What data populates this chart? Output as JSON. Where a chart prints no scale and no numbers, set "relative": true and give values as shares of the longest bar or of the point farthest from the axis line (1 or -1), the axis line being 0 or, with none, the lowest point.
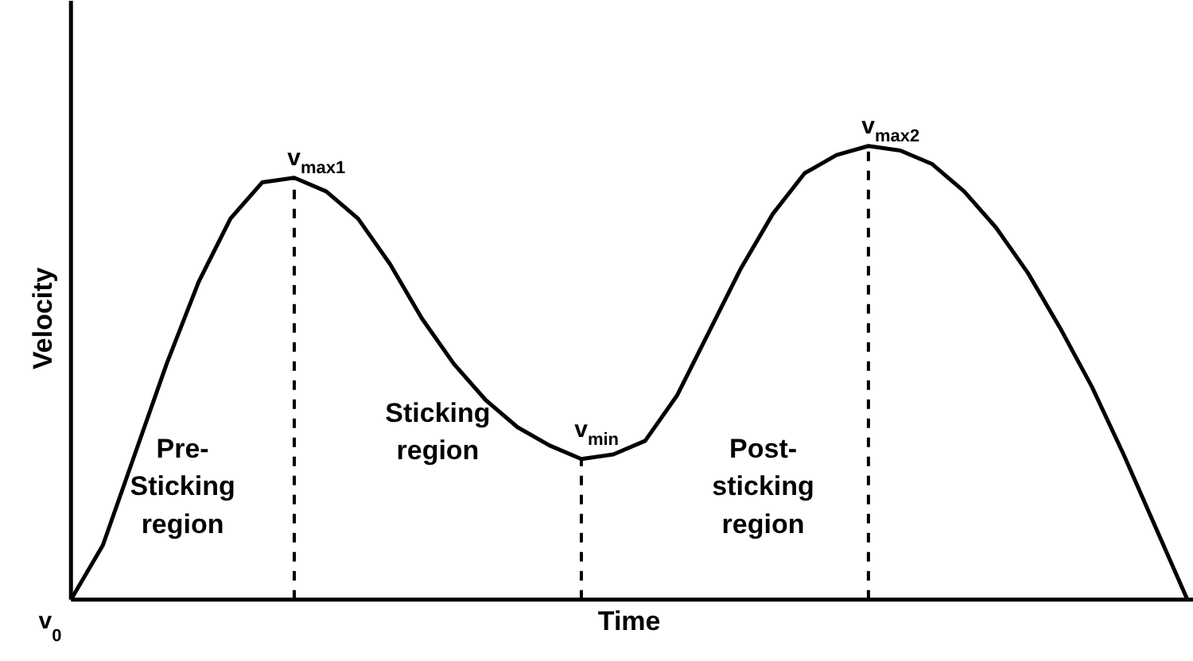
{
  "chart_data": {
    "type": "line",
    "relative": true,
    "xlabel": "Time",
    "ylabel": "Velocity",
    "categories": [
      null,
      null,
      null,
      null,
      null,
      null,
      null,
      null,
      null,
      null,
      null,
      null,
      null,
      null,
      null,
      null,
      null,
      null,
      null,
      null,
      null,
      null,
      null,
      null,
      null,
      null,
      null,
      null,
      null,
      null,
      null,
      null,
      null,
      null,
      null,
      null
    ],
    "series": [
      {
        "color": "#000000",
        "values": [
          0,
          0.12,
          0.32,
          0.52,
          0.7,
          0.84,
          0.92,
          0.93,
          0.9,
          0.84,
          0.74,
          0.62,
          0.52,
          0.44,
          0.38,
          0.34,
          0.31,
          0.32,
          0.35,
          0.45,
          0.59,
          0.73,
          0.85,
          0.94,
          0.98,
          1.0,
          0.99,
          0.96,
          0.9,
          0.82,
          0.72,
          0.6,
          0.47,
          0.32,
          0.16,
          0
        ]
      }
    ],
    "annotations": [
      "v$_{0}$",
      "v$_{max1}$",
      "v$_{min}$",
      "v$_{max2}$",
      "Pre-\nSticking\nregion",
      "Sticking\nregion",
      "Post-\nsticking\nregion"
    ],
    "line_style": "solid",
    "grid": false,
    "legend": false
  }
}
